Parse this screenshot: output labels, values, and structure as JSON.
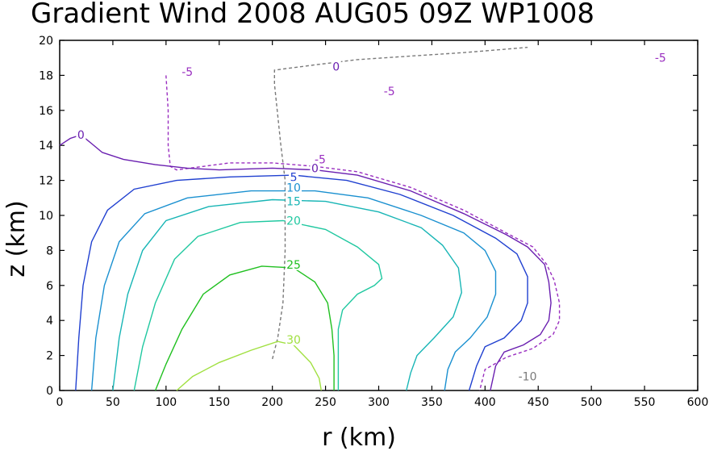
{
  "chart_data": {
    "type": "contour",
    "title": "Gradient Wind 2008 AUG05 09Z   WP1008",
    "xlabel": "r (km)",
    "ylabel": "z (km)",
    "xlim": [
      0,
      600
    ],
    "ylim": [
      0,
      20
    ],
    "xticks": [
      0,
      50,
      100,
      150,
      200,
      250,
      300,
      350,
      400,
      450,
      500,
      550,
      600
    ],
    "yticks": [
      0,
      2,
      4,
      6,
      8,
      10,
      12,
      14,
      16,
      18,
      20
    ],
    "grid": false,
    "legend": "none",
    "contours": [
      {
        "level": -10,
        "label": "-10",
        "color": "#7a7a7a",
        "dashed": true,
        "points": [
          [
            200,
            1.8
          ],
          [
            205,
            3
          ],
          [
            210,
            5
          ],
          [
            212,
            8
          ],
          [
            212,
            12
          ],
          [
            208,
            14
          ],
          [
            202,
            17.5
          ],
          [
            202,
            18.3
          ],
          [
            240,
            18.6
          ],
          [
            280,
            18.9
          ],
          [
            330,
            19.1
          ],
          [
            380,
            19.3
          ],
          [
            420,
            19.5
          ],
          [
            440,
            19.6
          ]
        ],
        "labels": [
          {
            "x": 440,
            "y": 0.8,
            "text": "-10"
          }
        ]
      },
      {
        "level": -5,
        "label": "-5",
        "color": "#9a2fc0",
        "dashed": true,
        "points": [
          [
            100,
            18
          ],
          [
            102,
            16
          ],
          [
            102,
            14
          ],
          [
            104,
            12.8
          ],
          [
            110,
            12.6
          ],
          [
            160,
            13.0
          ],
          [
            200,
            13.0
          ],
          [
            240,
            12.8
          ],
          [
            280,
            12.5
          ],
          [
            330,
            11.6
          ],
          [
            380,
            10.3
          ],
          [
            420,
            9.0
          ],
          [
            445,
            8.2
          ],
          [
            458,
            7.2
          ],
          [
            465,
            6.3
          ],
          [
            470,
            5.0
          ],
          [
            470,
            4.0
          ],
          [
            464,
            3.2
          ],
          [
            445,
            2.4
          ],
          [
            420,
            1.9
          ],
          [
            400,
            1.2
          ],
          [
            395,
            0
          ]
        ],
        "labels": [
          {
            "x": 120,
            "y": 18.2,
            "text": "-5"
          },
          {
            "x": 245,
            "y": 13.2,
            "text": "-5"
          },
          {
            "x": 310,
            "y": 17.1,
            "text": "-5"
          },
          {
            "x": 565,
            "y": 19.0,
            "text": "-5"
          }
        ]
      },
      {
        "level": 0,
        "label": "0",
        "color": "#6a1fb0",
        "dashed": false,
        "points": [
          [
            0,
            14.0
          ],
          [
            10,
            14.4
          ],
          [
            20,
            14.6
          ],
          [
            30,
            14.1
          ],
          [
            40,
            13.6
          ],
          [
            60,
            13.2
          ],
          [
            90,
            12.9
          ],
          [
            120,
            12.7
          ],
          [
            150,
            12.6
          ],
          [
            200,
            12.7
          ],
          [
            240,
            12.6
          ],
          [
            280,
            12.3
          ],
          [
            330,
            11.4
          ],
          [
            380,
            10.1
          ],
          [
            420,
            8.9
          ],
          [
            440,
            8.2
          ],
          [
            456,
            7.2
          ],
          [
            460,
            6.2
          ],
          [
            462,
            5.0
          ],
          [
            460,
            4.0
          ],
          [
            452,
            3.2
          ],
          [
            436,
            2.6
          ],
          [
            418,
            2.2
          ],
          [
            410,
            1.4
          ],
          [
            405,
            0
          ]
        ],
        "labels": [
          {
            "x": 20,
            "y": 14.6,
            "text": "0"
          },
          {
            "x": 240,
            "y": 12.7,
            "text": "0"
          },
          {
            "x": 260,
            "y": 18.5,
            "text": "0"
          }
        ]
      },
      {
        "level": 5,
        "label": "5",
        "color": "#2040d0",
        "dashed": false,
        "points": [
          [
            15,
            0
          ],
          [
            18,
            3
          ],
          [
            22,
            6
          ],
          [
            30,
            8.5
          ],
          [
            45,
            10.3
          ],
          [
            70,
            11.5
          ],
          [
            110,
            12.0
          ],
          [
            160,
            12.2
          ],
          [
            220,
            12.3
          ],
          [
            270,
            12.0
          ],
          [
            320,
            11.2
          ],
          [
            370,
            10.0
          ],
          [
            410,
            8.7
          ],
          [
            430,
            7.8
          ],
          [
            440,
            6.5
          ],
          [
            440,
            5.0
          ],
          [
            434,
            4.0
          ],
          [
            418,
            3.0
          ],
          [
            400,
            2.5
          ],
          [
            392,
            1.4
          ],
          [
            385,
            0
          ]
        ],
        "labels": [
          {
            "x": 220,
            "y": 12.2,
            "text": "5"
          }
        ]
      },
      {
        "level": 10,
        "label": "10",
        "color": "#1a90d0",
        "dashed": false,
        "points": [
          [
            30,
            0
          ],
          [
            34,
            3
          ],
          [
            42,
            6
          ],
          [
            56,
            8.5
          ],
          [
            80,
            10.1
          ],
          [
            120,
            11.0
          ],
          [
            180,
            11.4
          ],
          [
            240,
            11.4
          ],
          [
            290,
            11.0
          ],
          [
            340,
            10.0
          ],
          [
            380,
            9.0
          ],
          [
            400,
            8.0
          ],
          [
            410,
            6.8
          ],
          [
            410,
            5.5
          ],
          [
            402,
            4.2
          ],
          [
            386,
            3.0
          ],
          [
            372,
            2.2
          ],
          [
            365,
            1.2
          ],
          [
            362,
            0
          ]
        ],
        "labels": [
          {
            "x": 220,
            "y": 11.6,
            "text": "10"
          }
        ]
      },
      {
        "level": 15,
        "label": "15",
        "color": "#18b5b5",
        "dashed": false,
        "points": [
          [
            50,
            0
          ],
          [
            56,
            3
          ],
          [
            64,
            5.5
          ],
          [
            78,
            8
          ],
          [
            100,
            9.7
          ],
          [
            140,
            10.5
          ],
          [
            200,
            10.9
          ],
          [
            250,
            10.8
          ],
          [
            300,
            10.2
          ],
          [
            340,
            9.3
          ],
          [
            360,
            8.3
          ],
          [
            375,
            7.0
          ],
          [
            378,
            5.6
          ],
          [
            370,
            4.2
          ],
          [
            352,
            3.0
          ],
          [
            336,
            2.0
          ],
          [
            330,
            1.0
          ],
          [
            326,
            0
          ]
        ],
        "labels": [
          {
            "x": 220,
            "y": 10.8,
            "text": "15"
          }
        ]
      },
      {
        "level": 20,
        "label": "20",
        "color": "#20c8a0",
        "dashed": false,
        "points": [
          [
            70,
            0
          ],
          [
            78,
            2.5
          ],
          [
            90,
            5
          ],
          [
            108,
            7.5
          ],
          [
            130,
            8.8
          ],
          [
            170,
            9.6
          ],
          [
            210,
            9.7
          ],
          [
            250,
            9.2
          ],
          [
            280,
            8.2
          ],
          [
            300,
            7.2
          ],
          [
            303,
            6.4
          ],
          [
            296,
            6.0
          ],
          [
            280,
            5.5
          ],
          [
            266,
            4.6
          ],
          [
            262,
            3.5
          ],
          [
            262,
            2.0
          ],
          [
            262,
            0
          ]
        ],
        "labels": [
          {
            "x": 220,
            "y": 9.7,
            "text": "20"
          }
        ]
      },
      {
        "level": 25,
        "label": "25",
        "color": "#20c020",
        "dashed": false,
        "points": [
          [
            90,
            0
          ],
          [
            100,
            1.5
          ],
          [
            115,
            3.5
          ],
          [
            135,
            5.5
          ],
          [
            160,
            6.6
          ],
          [
            190,
            7.1
          ],
          [
            220,
            7.0
          ],
          [
            240,
            6.2
          ],
          [
            252,
            5.0
          ],
          [
            256,
            3.5
          ],
          [
            258,
            2.0
          ],
          [
            258,
            0
          ]
        ],
        "labels": [
          {
            "x": 220,
            "y": 7.2,
            "text": "25"
          }
        ]
      },
      {
        "level": 30,
        "label": "30",
        "color": "#a0e040",
        "dashed": false,
        "points": [
          [
            110,
            0
          ],
          [
            125,
            0.8
          ],
          [
            150,
            1.6
          ],
          [
            180,
            2.3
          ],
          [
            205,
            2.8
          ],
          [
            220,
            2.6
          ],
          [
            236,
            1.6
          ],
          [
            244,
            0.7
          ],
          [
            246,
            0
          ]
        ],
        "labels": [
          {
            "x": 220,
            "y": 2.9,
            "text": "30"
          }
        ]
      }
    ]
  }
}
